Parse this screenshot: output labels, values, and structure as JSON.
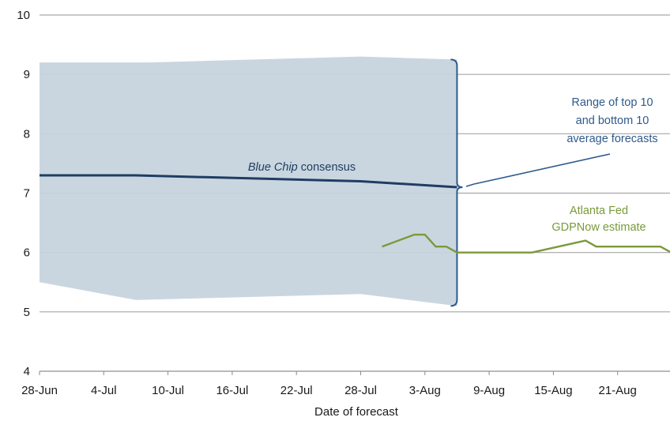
{
  "chart_data": {
    "type": "line",
    "title": "",
    "xlabel": "Date of forecast",
    "ylabel": "",
    "ylim": [
      4,
      10
    ],
    "yticks": [
      4,
      5,
      6,
      7,
      8,
      9,
      10
    ],
    "x_start": "28-Jun",
    "x_ticks": [
      "28-Jun",
      "4-Jul",
      "10-Jul",
      "16-Jul",
      "22-Jul",
      "28-Jul",
      "3-Aug",
      "9-Aug",
      "15-Aug",
      "21-Aug"
    ],
    "grid": true,
    "range_band": {
      "upper": [
        [
          "28-Jun",
          9.2
        ],
        [
          "8-Jul",
          9.2
        ],
        [
          "28-Jul",
          9.3
        ],
        [
          "6-Aug",
          9.25
        ]
      ],
      "lower": [
        [
          "28-Jun",
          5.5
        ],
        [
          "7-Jul",
          5.2
        ],
        [
          "28-Jul",
          5.3
        ],
        [
          "6-Aug",
          5.1
        ]
      ],
      "color": "#c5d3dc"
    },
    "series": [
      {
        "name": "Blue Chip consensus",
        "color": "#1f3d64",
        "points": [
          [
            "28-Jun",
            7.3
          ],
          [
            "7-Jul",
            7.3
          ],
          [
            "28-Jul",
            7.2
          ],
          [
            "6-Aug",
            7.1
          ]
        ]
      },
      {
        "name": "Atlanta Fed GDPNow estimate",
        "color": "#7a9a3a",
        "points": [
          [
            "30-Jul",
            6.1
          ],
          [
            "2-Aug",
            6.3
          ],
          [
            "3-Aug",
            6.3
          ],
          [
            "4-Aug",
            6.1
          ],
          [
            "5-Aug",
            6.1
          ],
          [
            "6-Aug",
            6.0
          ],
          [
            "13-Aug",
            6.0
          ],
          [
            "18-Aug",
            6.2
          ],
          [
            "19-Aug",
            6.1
          ],
          [
            "25-Aug",
            6.1
          ],
          [
            "26-Aug",
            6.0
          ],
          [
            "27-Aug",
            5.7
          ]
        ]
      }
    ],
    "annotations": {
      "range_label": [
        "Range of top 10",
        "and bottom 10",
        "average forecasts"
      ],
      "range_label_color": "#2e5a8c",
      "consensus_label_italic": "Blue Chip",
      "consensus_label_rest": " consensus",
      "consensus_label_color": "#1f3d64",
      "gdpnow_label": [
        "Atlanta Fed",
        "GDPNow estimate"
      ],
      "gdpnow_label_color": "#7a9a3a"
    }
  }
}
